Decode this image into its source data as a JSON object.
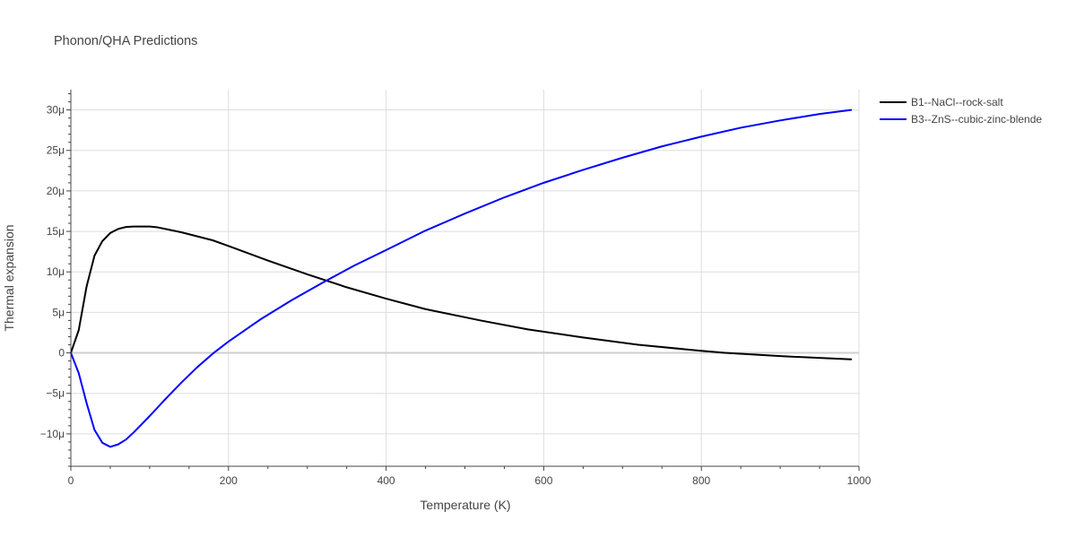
{
  "chart_data": {
    "type": "line",
    "title": "Phonon/QHA Predictions",
    "xlabel": "Temperature (K)",
    "ylabel": "Thermal expansion",
    "xlim": [
      0,
      1000
    ],
    "ylim": [
      -14,
      32.5
    ],
    "grid": true,
    "legend_position": "top-right",
    "x_ticks": [
      {
        "value": 0,
        "label": "0"
      },
      {
        "value": 200,
        "label": "200"
      },
      {
        "value": 400,
        "label": "400"
      },
      {
        "value": 600,
        "label": "600"
      },
      {
        "value": 800,
        "label": "800"
      },
      {
        "value": 1000,
        "label": "1000"
      }
    ],
    "y_ticks": [
      {
        "value": -10,
        "label": "−10μ"
      },
      {
        "value": -5,
        "label": "−5μ"
      },
      {
        "value": 0,
        "label": "0"
      },
      {
        "value": 5,
        "label": "5μ"
      },
      {
        "value": 10,
        "label": "10μ"
      },
      {
        "value": 15,
        "label": "15μ"
      },
      {
        "value": 20,
        "label": "20μ"
      },
      {
        "value": 25,
        "label": "25μ"
      },
      {
        "value": 30,
        "label": "30μ"
      }
    ],
    "series": [
      {
        "name": "B1--NaCl--rock-salt",
        "color": "#000000",
        "points": [
          [
            0,
            0
          ],
          [
            10,
            2.8
          ],
          [
            20,
            8.2
          ],
          [
            30,
            12.0
          ],
          [
            40,
            13.8
          ],
          [
            50,
            14.8
          ],
          [
            60,
            15.3
          ],
          [
            70,
            15.55
          ],
          [
            80,
            15.6
          ],
          [
            100,
            15.6
          ],
          [
            110,
            15.5
          ],
          [
            140,
            14.9
          ],
          [
            180,
            13.9
          ],
          [
            200,
            13.2
          ],
          [
            250,
            11.4
          ],
          [
            300,
            9.7
          ],
          [
            350,
            8.1
          ],
          [
            400,
            6.7
          ],
          [
            450,
            5.4
          ],
          [
            520,
            4.0
          ],
          [
            580,
            2.9
          ],
          [
            650,
            1.9
          ],
          [
            720,
            1.0
          ],
          [
            800,
            0.25
          ],
          [
            830,
            0.0
          ],
          [
            900,
            -0.4
          ],
          [
            990,
            -0.8
          ]
        ]
      },
      {
        "name": "B3--ZnS--cubic-zinc-blende",
        "color": "#0000ff",
        "points": [
          [
            0,
            0
          ],
          [
            10,
            -2.5
          ],
          [
            20,
            -6.2
          ],
          [
            30,
            -9.5
          ],
          [
            40,
            -11.1
          ],
          [
            50,
            -11.6
          ],
          [
            60,
            -11.3
          ],
          [
            70,
            -10.7
          ],
          [
            80,
            -9.8
          ],
          [
            100,
            -7.8
          ],
          [
            120,
            -5.7
          ],
          [
            140,
            -3.7
          ],
          [
            160,
            -1.8
          ],
          [
            180,
            -0.1
          ],
          [
            200,
            1.4
          ],
          [
            240,
            4.1
          ],
          [
            280,
            6.5
          ],
          [
            320,
            8.7
          ],
          [
            360,
            10.8
          ],
          [
            400,
            12.7
          ],
          [
            450,
            15.1
          ],
          [
            500,
            17.2
          ],
          [
            550,
            19.2
          ],
          [
            600,
            21.0
          ],
          [
            650,
            22.6
          ],
          [
            700,
            24.1
          ],
          [
            750,
            25.5
          ],
          [
            800,
            26.7
          ],
          [
            850,
            27.8
          ],
          [
            900,
            28.7
          ],
          [
            950,
            29.5
          ],
          [
            990,
            30.0
          ]
        ]
      }
    ]
  }
}
